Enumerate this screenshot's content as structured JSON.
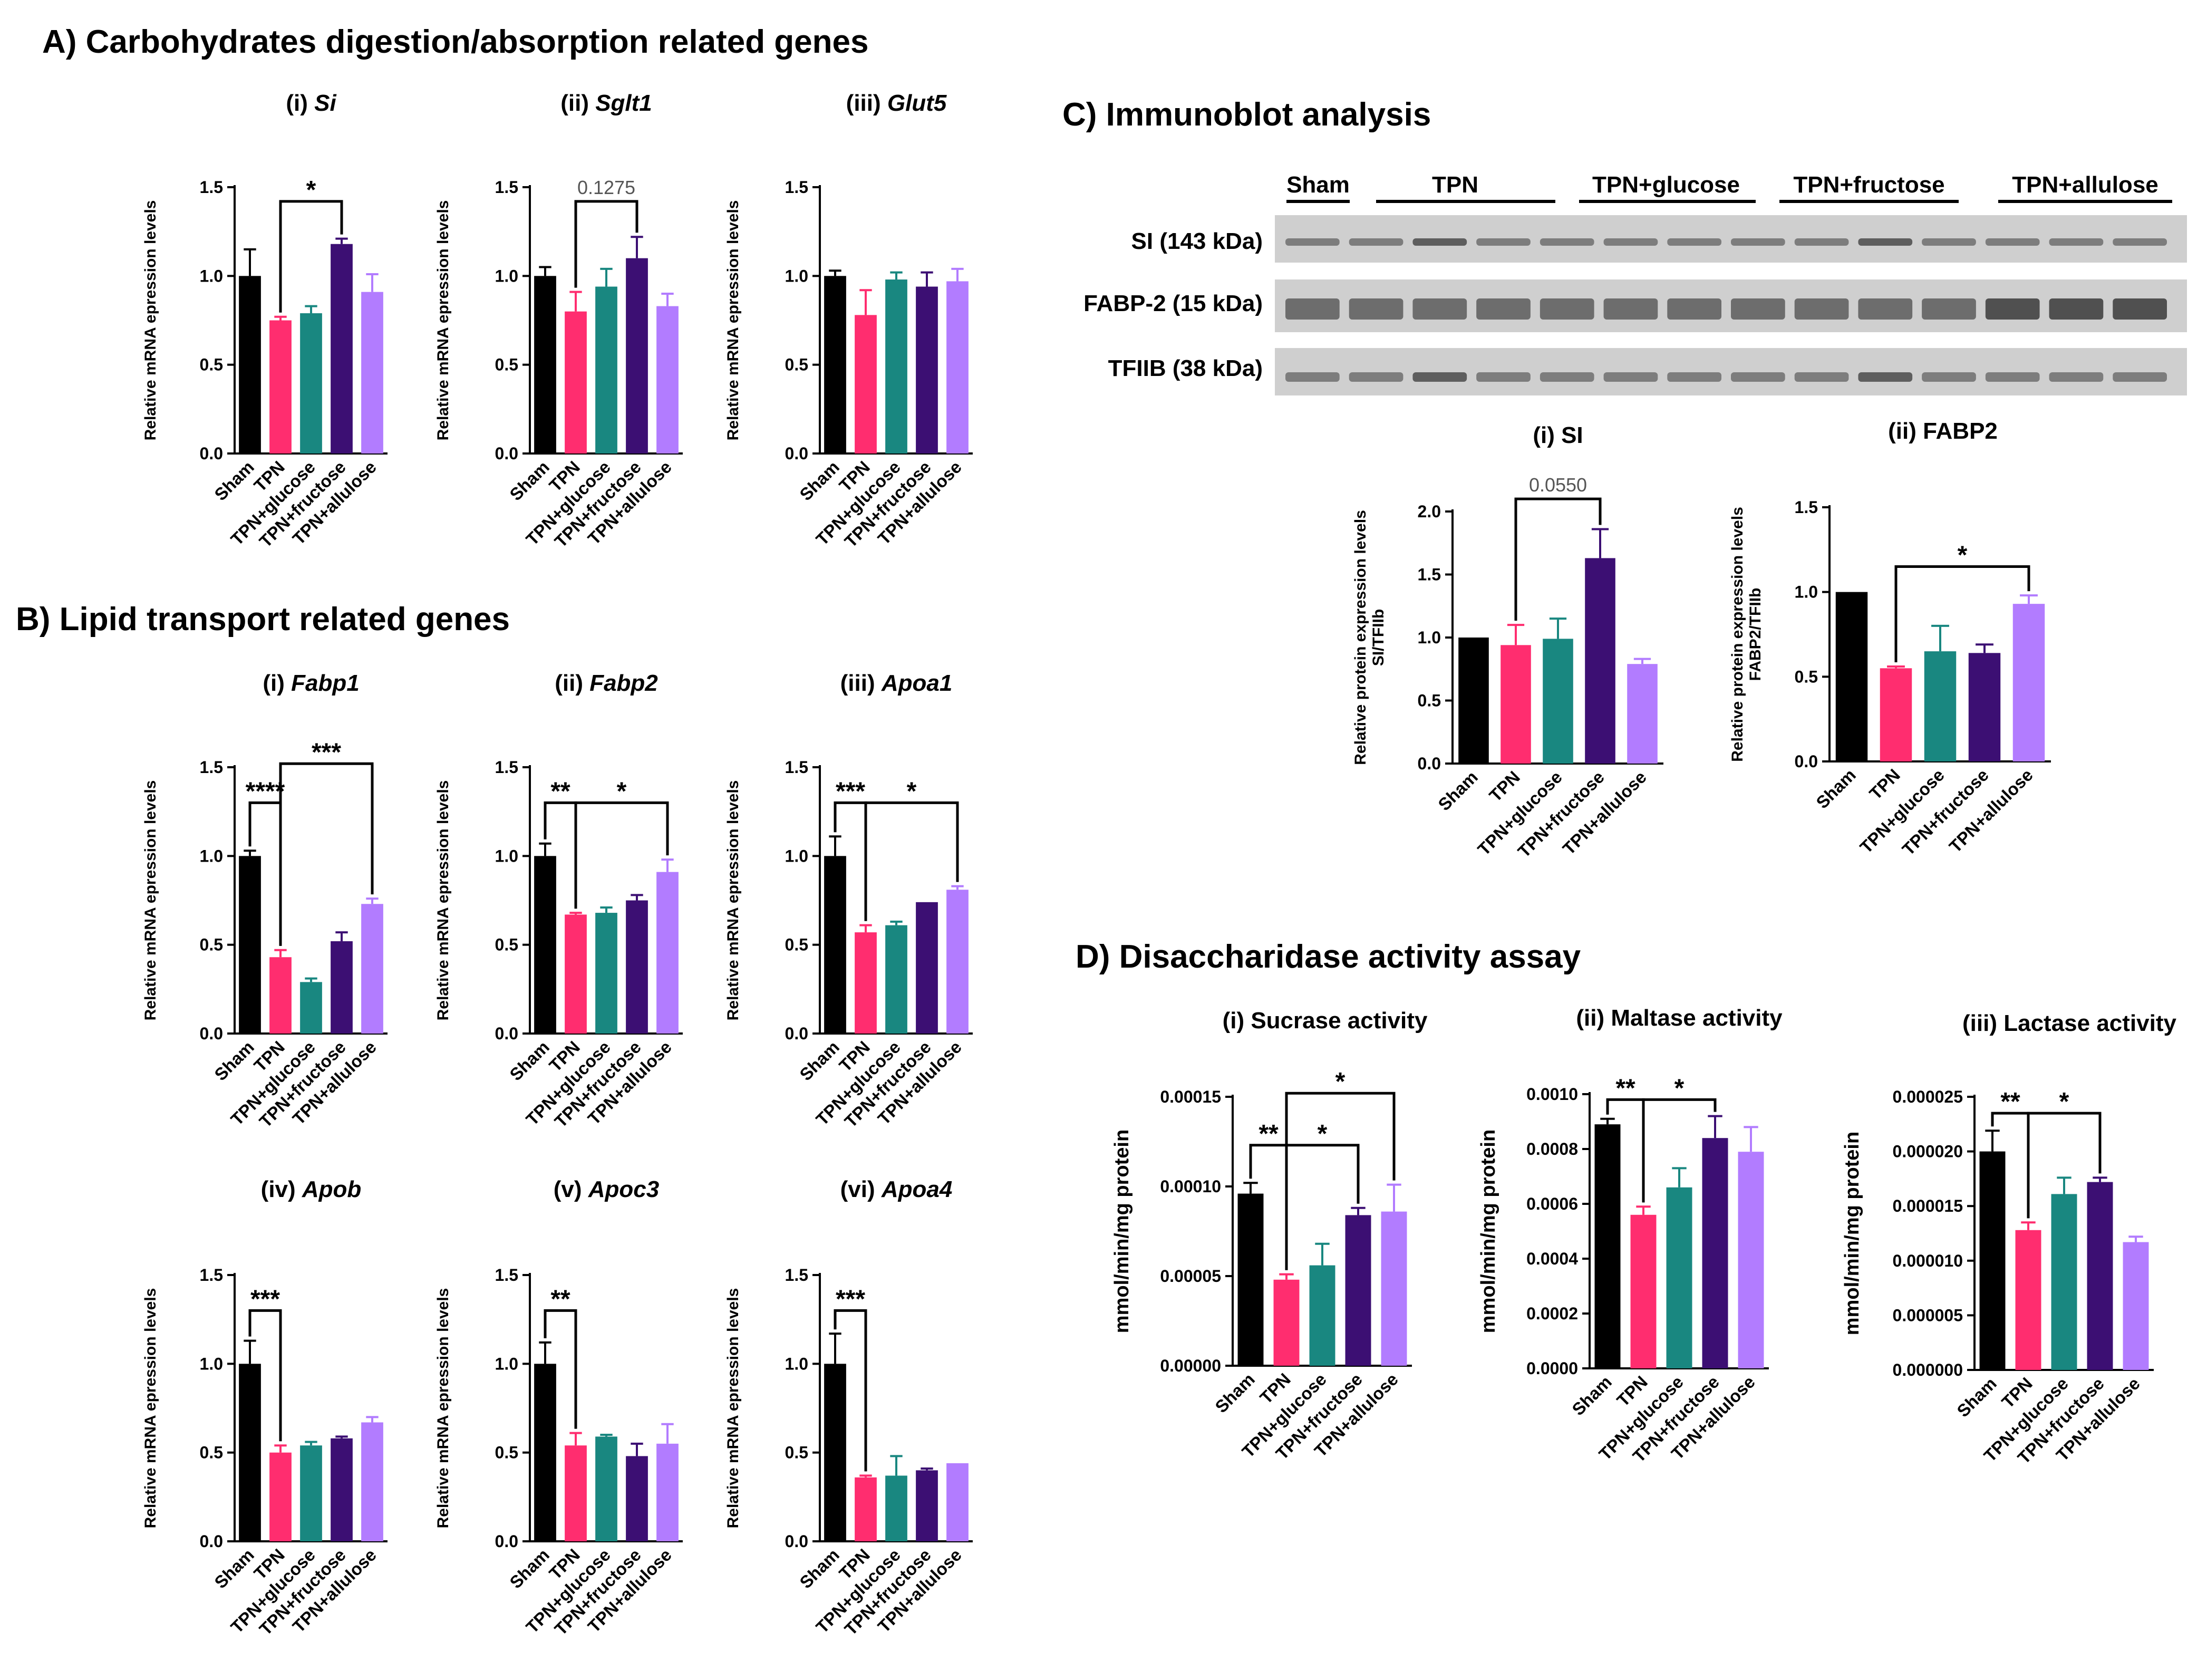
{
  "colors": {
    "Sham": "#000000",
    "TPN": "#ff2d6f",
    "TPN+glucose": "#198780",
    "TPN+fructose": "#3c0f73",
    "TPN+allulose": "#b27cff"
  },
  "sections": {
    "A": "A) Carbohydrates digestion/absorption related genes",
    "B": "B) Lipid transport related genes",
    "C": "C) Immunoblot analysis",
    "D": "D) Disaccharidase activity assay"
  },
  "immunoblot": {
    "groups": [
      "Sham",
      "TPN",
      "TPN+glucose",
      "TPN+fructose",
      "TPN+allulose"
    ],
    "rows": [
      "SI (143 kDa)",
      "FABP-2 (15 kDa)",
      "TFIIB (38 kDa)"
    ]
  },
  "chart_data": [
    {
      "id": "A1",
      "type": "bar",
      "title_prefix": "(i) ",
      "title_italic": "Si",
      "categories": [
        "Sham",
        "TPN",
        "TPN+glucose",
        "TPN+fructose",
        "TPN+allulose"
      ],
      "values": [
        1.0,
        0.75,
        0.79,
        1.18,
        0.91
      ],
      "errors": [
        0.15,
        0.02,
        0.04,
        0.03,
        0.1
      ],
      "ylabel": "Relative mRNA epression levels",
      "ylim": [
        0,
        1.5
      ],
      "ticks": [
        0.0,
        0.5,
        1.0,
        1.5
      ],
      "tick_labels": [
        "0.0",
        "0.5",
        "1.0",
        "1.5"
      ],
      "annotations": [
        {
          "from": 1,
          "to": 3,
          "label": "*",
          "level": 1.42
        }
      ]
    },
    {
      "id": "A2",
      "type": "bar",
      "title_prefix": "(ii) ",
      "title_italic": "Sglt1",
      "categories": [
        "Sham",
        "TPN",
        "TPN+glucose",
        "TPN+fructose",
        "TPN+allulose"
      ],
      "values": [
        1.0,
        0.8,
        0.94,
        1.1,
        0.83
      ],
      "errors": [
        0.05,
        0.11,
        0.1,
        0.12,
        0.07
      ],
      "ylabel": "Relative mRNA epression levels",
      "ylim": [
        0,
        1.5
      ],
      "ticks": [
        0.0,
        0.5,
        1.0,
        1.5
      ],
      "tick_labels": [
        "0.0",
        "0.5",
        "1.0",
        "1.5"
      ],
      "annotations": [
        {
          "from": 1,
          "to": 3,
          "label": "0.1275",
          "level": 1.42
        }
      ]
    },
    {
      "id": "A3",
      "type": "bar",
      "title_prefix": "(iii) ",
      "title_italic": "Glut5",
      "categories": [
        "Sham",
        "TPN",
        "TPN+glucose",
        "TPN+fructose",
        "TPN+allulose"
      ],
      "values": [
        1.0,
        0.78,
        0.98,
        0.94,
        0.97
      ],
      "errors": [
        0.03,
        0.14,
        0.04,
        0.08,
        0.07
      ],
      "ylabel": "Relative mRNA epression levels",
      "ylim": [
        0,
        1.5
      ],
      "ticks": [
        0.0,
        0.5,
        1.0,
        1.5
      ],
      "tick_labels": [
        "0.0",
        "0.5",
        "1.0",
        "1.5"
      ],
      "annotations": []
    },
    {
      "id": "B1",
      "type": "bar",
      "title_prefix": "(i) ",
      "title_italic": "Fabp1",
      "categories": [
        "Sham",
        "TPN",
        "TPN+glucose",
        "TPN+fructose",
        "TPN+allulose"
      ],
      "values": [
        1.0,
        0.43,
        0.29,
        0.52,
        0.73
      ],
      "errors": [
        0.03,
        0.04,
        0.02,
        0.05,
        0.03
      ],
      "ylabel": "Relative mRNA epression levels",
      "ylim": [
        0,
        1.5
      ],
      "ticks": [
        0.0,
        0.5,
        1.0,
        1.5
      ],
      "tick_labels": [
        "0.0",
        "0.5",
        "1.0",
        "1.5"
      ],
      "annotations": [
        {
          "from": 0,
          "to": 1,
          "label": "****",
          "level": 1.3
        },
        {
          "from": 1,
          "to": 4,
          "label": "***",
          "level": 1.52
        }
      ]
    },
    {
      "id": "B2",
      "type": "bar",
      "title_prefix": "(ii) ",
      "title_italic": "Fabp2",
      "categories": [
        "Sham",
        "TPN",
        "TPN+glucose",
        "TPN+fructose",
        "TPN+allulose"
      ],
      "values": [
        1.0,
        0.67,
        0.68,
        0.75,
        0.91
      ],
      "errors": [
        0.07,
        0.01,
        0.03,
        0.03,
        0.07
      ],
      "ylabel": "Relative mRNA epression levels",
      "ylim": [
        0,
        1.5
      ],
      "ticks": [
        0.0,
        0.5,
        1.0,
        1.5
      ],
      "tick_labels": [
        "0.0",
        "0.5",
        "1.0",
        "1.5"
      ],
      "annotations": [
        {
          "from": 0,
          "to": 1,
          "label": "**",
          "level": 1.3
        },
        {
          "from": 1,
          "to": 4,
          "label": "*",
          "level": 1.3
        }
      ]
    },
    {
      "id": "B3",
      "type": "bar",
      "title_prefix": "(iii) ",
      "title_italic": "Apoa1",
      "categories": [
        "Sham",
        "TPN",
        "TPN+glucose",
        "TPN+fructose",
        "TPN+allulose"
      ],
      "values": [
        1.0,
        0.57,
        0.61,
        0.74,
        0.81
      ],
      "errors": [
        0.11,
        0.04,
        0.02,
        0.0,
        0.02
      ],
      "ylabel": "Relative mRNA epression levels",
      "ylim": [
        0,
        1.5
      ],
      "ticks": [
        0.0,
        0.5,
        1.0,
        1.5
      ],
      "tick_labels": [
        "0.0",
        "0.5",
        "1.0",
        "1.5"
      ],
      "annotations": [
        {
          "from": 0,
          "to": 1,
          "label": "***",
          "level": 1.3
        },
        {
          "from": 1,
          "to": 4,
          "label": "*",
          "level": 1.3
        }
      ]
    },
    {
      "id": "B4",
      "type": "bar",
      "title_prefix": "(iv) ",
      "title_italic": "Apob",
      "categories": [
        "Sham",
        "TPN",
        "TPN+glucose",
        "TPN+fructose",
        "TPN+allulose"
      ],
      "values": [
        1.0,
        0.5,
        0.54,
        0.58,
        0.67
      ],
      "errors": [
        0.13,
        0.04,
        0.02,
        0.01,
        0.03
      ],
      "ylabel": "Relative mRNA epression levels",
      "ylim": [
        0,
        1.5
      ],
      "ticks": [
        0.0,
        0.5,
        1.0,
        1.5
      ],
      "tick_labels": [
        "0.0",
        "0.5",
        "1.0",
        "1.5"
      ],
      "annotations": [
        {
          "from": 0,
          "to": 1,
          "label": "***",
          "level": 1.3
        }
      ]
    },
    {
      "id": "B5",
      "type": "bar",
      "title_prefix": "(v) ",
      "title_italic": "Apoc3",
      "categories": [
        "Sham",
        "TPN",
        "TPN+glucose",
        "TPN+fructose",
        "TPN+allulose"
      ],
      "values": [
        1.0,
        0.54,
        0.59,
        0.48,
        0.55
      ],
      "errors": [
        0.12,
        0.07,
        0.01,
        0.07,
        0.11
      ],
      "ylabel": "Relative mRNA epression levels",
      "ylim": [
        0,
        1.5
      ],
      "ticks": [
        0.0,
        0.5,
        1.0,
        1.5
      ],
      "tick_labels": [
        "0.0",
        "0.5",
        "1.0",
        "1.5"
      ],
      "annotations": [
        {
          "from": 0,
          "to": 1,
          "label": "**",
          "level": 1.3
        }
      ]
    },
    {
      "id": "B6",
      "type": "bar",
      "title_prefix": "(vi) ",
      "title_italic": "Apoa4",
      "categories": [
        "Sham",
        "TPN",
        "TPN+glucose",
        "TPN+fructose",
        "TPN+allulose"
      ],
      "values": [
        1.0,
        0.36,
        0.37,
        0.4,
        0.44
      ],
      "errors": [
        0.17,
        0.01,
        0.11,
        0.01,
        0.0
      ],
      "ylabel": "Relative mRNA epression levels",
      "ylim": [
        0,
        1.5
      ],
      "ticks": [
        0.0,
        0.5,
        1.0,
        1.5
      ],
      "tick_labels": [
        "0.0",
        "0.5",
        "1.0",
        "1.5"
      ],
      "annotations": [
        {
          "from": 0,
          "to": 1,
          "label": "***",
          "level": 1.3
        }
      ]
    },
    {
      "id": "C1",
      "type": "bar",
      "title_prefix": "(i) SI",
      "title_italic": "",
      "categories": [
        "Sham",
        "TPN",
        "TPN+glucose",
        "TPN+fructose",
        "TPN+allulose"
      ],
      "values": [
        1.0,
        0.94,
        0.99,
        1.63,
        0.79
      ],
      "errors": [
        0.0,
        0.16,
        0.16,
        0.23,
        0.04
      ],
      "ylabel": "Relative protein expression levels",
      "ylabel2": "SI/TFIIb",
      "ylim": [
        0,
        2.0
      ],
      "ticks": [
        0.0,
        0.5,
        1.0,
        1.5,
        2.0
      ],
      "tick_labels": [
        "0.0",
        "0.5",
        "1.0",
        "1.5",
        "2.0"
      ],
      "annotations": [
        {
          "from": 1,
          "to": 3,
          "label": "0.0550",
          "level": 2.1
        }
      ]
    },
    {
      "id": "C2",
      "type": "bar",
      "title_prefix": "(ii) FABP2",
      "title_italic": "",
      "categories": [
        "Sham",
        "TPN",
        "TPN+glucose",
        "TPN+fructose",
        "TPN+allulose"
      ],
      "values": [
        1.0,
        0.55,
        0.65,
        0.64,
        0.93
      ],
      "errors": [
        0.0,
        0.01,
        0.15,
        0.05,
        0.05
      ],
      "ylabel": "Relative protein expression levels",
      "ylabel2": "FABP2/TFIIb",
      "ylim": [
        0,
        1.5
      ],
      "ticks": [
        0.0,
        0.5,
        1.0,
        1.5
      ],
      "tick_labels": [
        "0.0",
        "0.5",
        "1.0",
        "1.5"
      ],
      "annotations": [
        {
          "from": 1,
          "to": 4,
          "label": "*",
          "level": 1.15
        }
      ]
    },
    {
      "id": "D1",
      "type": "bar",
      "title_prefix": "(i) Sucrase activity",
      "title_italic": "",
      "categories": [
        "Sham",
        "TPN",
        "TPN+glucose",
        "TPN+fructose",
        "TPN+allulose"
      ],
      "values": [
        9.6e-05,
        4.8e-05,
        5.6e-05,
        8.4e-05,
        8.6e-05
      ],
      "errors": [
        6e-06,
        3e-06,
        1.2e-05,
        4e-06,
        1.5e-05
      ],
      "ylabel": "mmol/min/mg protein",
      "ylim": [
        0,
        0.00015
      ],
      "ticks": [
        0,
        5e-05,
        0.0001,
        0.00015
      ],
      "tick_labels": [
        "0.00000",
        "0.00005",
        "0.00010",
        "0.00015"
      ],
      "annotations": [
        {
          "from": 0,
          "to": 1,
          "label": "**",
          "level": 0.000123
        },
        {
          "from": 1,
          "to": 3,
          "label": "*",
          "level": 0.000123
        },
        {
          "from": 1,
          "to": 4,
          "label": "*",
          "level": 0.000152
        }
      ]
    },
    {
      "id": "D2",
      "type": "bar",
      "title_prefix": "(ii) Maltase activity",
      "title_italic": "",
      "categories": [
        "Sham",
        "TPN",
        "TPN+glucose",
        "TPN+fructose",
        "TPN+allulose"
      ],
      "values": [
        0.00089,
        0.00056,
        0.00066,
        0.00084,
        0.00079
      ],
      "errors": [
        2e-05,
        3e-05,
        7e-05,
        8e-05,
        9e-05
      ],
      "ylabel": "mmol/min/mg protein",
      "ylim": [
        0,
        0.001
      ],
      "ticks": [
        0,
        0.0002,
        0.0004,
        0.0006,
        0.0008,
        0.001
      ],
      "tick_labels": [
        "0.0000",
        "0.0002",
        "0.0004",
        "0.0006",
        "0.0008",
        "0.0010"
      ],
      "annotations": [
        {
          "from": 0,
          "to": 1,
          "label": "**",
          "level": 0.00098
        },
        {
          "from": 1,
          "to": 3,
          "label": "*",
          "level": 0.00098
        }
      ]
    },
    {
      "id": "D3",
      "type": "bar",
      "title_prefix": "(iii) Lactase activity",
      "title_italic": "",
      "categories": [
        "Sham",
        "TPN",
        "TPN+glucose",
        "TPN+fructose",
        "TPN+allulose"
      ],
      "values": [
        2e-05,
        1.28e-05,
        1.61e-05,
        1.72e-05,
        1.17e-05
      ],
      "errors": [
        1.9e-06,
        7e-07,
        1.5e-06,
        4e-07,
        5e-07
      ],
      "ylabel": "mmol/min/mg protein",
      "ylim": [
        0,
        2.5e-05
      ],
      "ticks": [
        0,
        5e-06,
        1e-05,
        1.5e-05,
        2e-05,
        2.5e-05
      ],
      "tick_labels": [
        "0.000000",
        "0.000005",
        "0.000010",
        "0.000015",
        "0.000020",
        "0.000025"
      ],
      "annotations": [
        {
          "from": 0,
          "to": 1,
          "label": "**",
          "level": 2.35e-05
        },
        {
          "from": 1,
          "to": 3,
          "label": "*",
          "level": 2.35e-05
        }
      ]
    }
  ]
}
